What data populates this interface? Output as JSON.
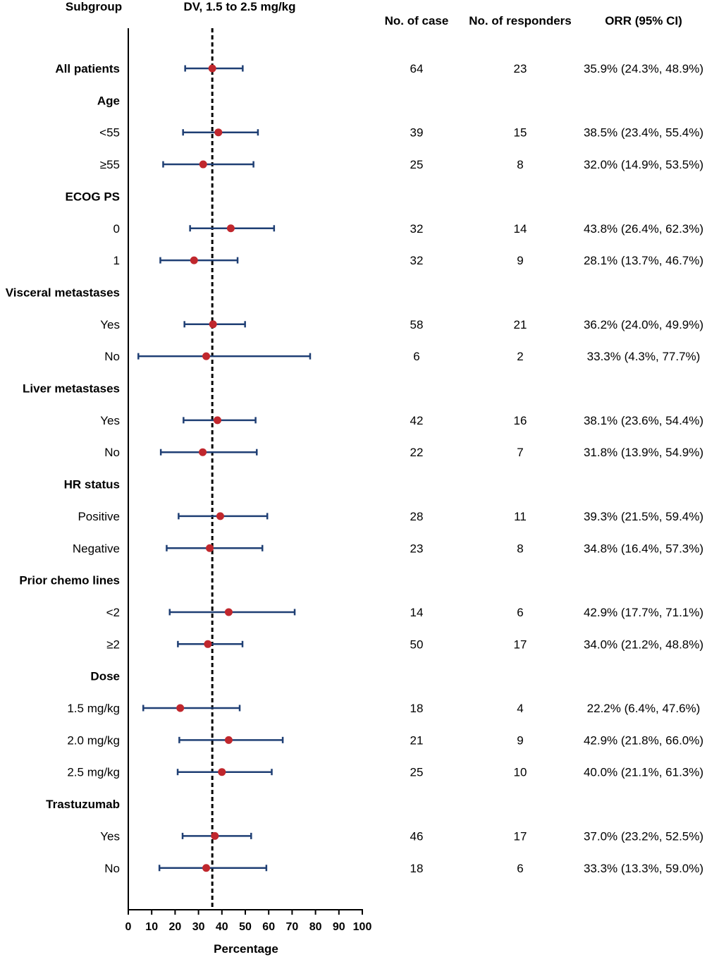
{
  "chart_data": {
    "type": "forest",
    "title": "",
    "headers": {
      "subgroup": "Subgroup",
      "plot": "DV, 1.5 to 2.5 mg/kg",
      "cases": "No. of case",
      "responders": "No. of responders",
      "orr": "ORR (95% CI)"
    },
    "xlabel": "Percentage",
    "xlim": [
      0,
      100
    ],
    "xticks": [
      0,
      10,
      20,
      30,
      40,
      50,
      60,
      70,
      80,
      90,
      100
    ],
    "reference_line": 35.9,
    "point_color": "#c0272d",
    "ci_color": "#1f3f74",
    "rows": [
      {
        "label": "All patients",
        "header": true,
        "est": 35.9,
        "lo": 24.3,
        "hi": 48.9,
        "cases": "64",
        "responders": "23",
        "orr": "35.9% (24.3%, 48.9%)"
      },
      {
        "label": "Age",
        "header": true
      },
      {
        "label": "<55",
        "est": 38.5,
        "lo": 23.4,
        "hi": 55.4,
        "cases": "39",
        "responders": "15",
        "orr": "38.5% (23.4%, 55.4%)"
      },
      {
        "label": "≥55",
        "est": 32.0,
        "lo": 14.9,
        "hi": 53.5,
        "cases": "25",
        "responders": "8",
        "orr": "32.0% (14.9%, 53.5%)"
      },
      {
        "label": "ECOG PS",
        "header": true
      },
      {
        "label": "0",
        "est": 43.8,
        "lo": 26.4,
        "hi": 62.3,
        "cases": "32",
        "responders": "14",
        "orr": "43.8% (26.4%, 62.3%)"
      },
      {
        "label": "1",
        "est": 28.1,
        "lo": 13.7,
        "hi": 46.7,
        "cases": "32",
        "responders": "9",
        "orr": "28.1% (13.7%, 46.7%)"
      },
      {
        "label": "Visceral metastases",
        "header": true
      },
      {
        "label": "Yes",
        "est": 36.2,
        "lo": 24.0,
        "hi": 49.9,
        "cases": "58",
        "responders": "21",
        "orr": "36.2% (24.0%, 49.9%)"
      },
      {
        "label": "No",
        "est": 33.3,
        "lo": 4.3,
        "hi": 77.7,
        "cases": "6",
        "responders": "2",
        "orr": "33.3% (4.3%, 77.7%)"
      },
      {
        "label": "Liver metastases",
        "header": true
      },
      {
        "label": "Yes",
        "est": 38.1,
        "lo": 23.6,
        "hi": 54.4,
        "cases": "42",
        "responders": "16",
        "orr": "38.1% (23.6%, 54.4%)"
      },
      {
        "label": "No",
        "est": 31.8,
        "lo": 13.9,
        "hi": 54.9,
        "cases": "22",
        "responders": "7",
        "orr": "31.8% (13.9%, 54.9%)"
      },
      {
        "label": "HR status",
        "header": true
      },
      {
        "label": "Positive",
        "est": 39.3,
        "lo": 21.5,
        "hi": 59.4,
        "cases": "28",
        "responders": "11",
        "orr": "39.3% (21.5%, 59.4%)"
      },
      {
        "label": "Negative",
        "est": 34.8,
        "lo": 16.4,
        "hi": 57.3,
        "cases": "23",
        "responders": "8",
        "orr": "34.8% (16.4%, 57.3%)"
      },
      {
        "label": "Prior chemo lines",
        "header": true
      },
      {
        "label": "<2",
        "est": 42.9,
        "lo": 17.7,
        "hi": 71.1,
        "cases": "14",
        "responders": "6",
        "orr": "42.9% (17.7%, 71.1%)"
      },
      {
        "label": "≥2",
        "est": 34.0,
        "lo": 21.2,
        "hi": 48.8,
        "cases": "50",
        "responders": "17",
        "orr": "34.0% (21.2%, 48.8%)"
      },
      {
        "label": "Dose",
        "header": true
      },
      {
        "label": "1.5 mg/kg",
        "est": 22.2,
        "lo": 6.4,
        "hi": 47.6,
        "cases": "18",
        "responders": "4",
        "orr": "22.2% (6.4%, 47.6%)"
      },
      {
        "label": "2.0 mg/kg",
        "est": 42.9,
        "lo": 21.8,
        "hi": 66.0,
        "cases": "21",
        "responders": "9",
        "orr": "42.9% (21.8%, 66.0%)"
      },
      {
        "label": "2.5 mg/kg",
        "est": 40.0,
        "lo": 21.1,
        "hi": 61.3,
        "cases": "25",
        "responders": "10",
        "orr": "40.0% (21.1%, 61.3%)"
      },
      {
        "label": "Trastuzumab",
        "header": true
      },
      {
        "label": "Yes",
        "est": 37.0,
        "lo": 23.2,
        "hi": 52.5,
        "cases": "46",
        "responders": "17",
        "orr": "37.0% (23.2%, 52.5%)"
      },
      {
        "label": "No",
        "est": 33.3,
        "lo": 13.3,
        "hi": 59.0,
        "cases": "18",
        "responders": "6",
        "orr": "33.3% (13.3%, 59.0%)"
      }
    ]
  }
}
